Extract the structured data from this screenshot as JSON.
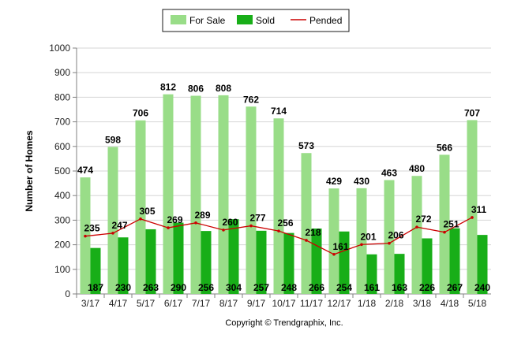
{
  "chart_data": {
    "type": "bar",
    "ylabel": "Number of Homes",
    "xlabel": "",
    "ylim": [
      0,
      1000
    ],
    "yticks": [
      0,
      100,
      200,
      300,
      400,
      500,
      600,
      700,
      800,
      900,
      1000
    ],
    "grid": true,
    "legend_position": "top-center",
    "categories": [
      "3/17",
      "4/17",
      "5/17",
      "6/17",
      "7/17",
      "8/17",
      "9/17",
      "10/17",
      "11/17",
      "12/17",
      "1/18",
      "2/18",
      "3/18",
      "4/18",
      "5/18"
    ],
    "series": [
      {
        "name": "For Sale",
        "type": "bar",
        "color": "#99dd88",
        "values": [
          474,
          598,
          706,
          812,
          806,
          808,
          762,
          714,
          573,
          429,
          430,
          463,
          480,
          566,
          707
        ]
      },
      {
        "name": "Sold",
        "type": "bar",
        "color": "#18ae18",
        "values": [
          187,
          230,
          263,
          290,
          256,
          304,
          257,
          248,
          266,
          254,
          161,
          163,
          226,
          267,
          240
        ]
      },
      {
        "name": "Pended",
        "type": "line",
        "color": "#cc0000",
        "values": [
          235,
          247,
          305,
          269,
          289,
          260,
          277,
          256,
          218,
          161,
          201,
          206,
          272,
          251,
          311
        ]
      }
    ]
  },
  "copyright": "Copyright © Trendgraphix, Inc."
}
